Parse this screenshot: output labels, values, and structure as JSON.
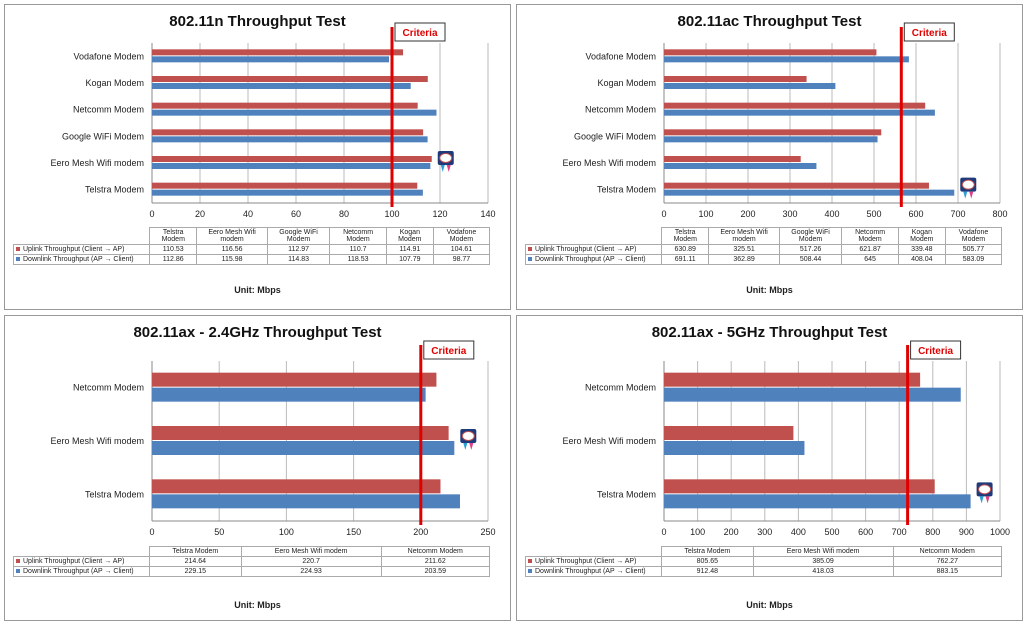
{
  "unit_label": "Unit: Mbps",
  "criteria_label": "Criteria",
  "colors": {
    "uplink": "#c0504d",
    "downlink": "#4f81bd",
    "criteria": "#e00000"
  },
  "chart_data": [
    {
      "type": "bar",
      "orientation": "horizontal",
      "title": "802.11n Throughput Test",
      "categories": [
        "Telstra Modem",
        "Eero Mesh Wifi modem",
        "Google WiFi Modem",
        "Netcomm Modem",
        "Kogan Modem",
        "Vodafone Modem"
      ],
      "table_headers": [
        "Telstra Modem",
        "Eero Mesh Wifi modem",
        "Google WiFi Modem",
        "Netcomm Modem",
        "Kogan Modem",
        "Vodafone Modem"
      ],
      "series": [
        {
          "name": "Uplink Throughput (Client → AP)",
          "values": [
            110.53,
            116.56,
            112.97,
            110.7,
            114.91,
            104.61
          ]
        },
        {
          "name": "Downlink Throughput (AP → Client)",
          "values": [
            112.86,
            115.98,
            114.83,
            118.53,
            107.79,
            98.77
          ]
        }
      ],
      "xlim": [
        0,
        140
      ],
      "ticks": [
        0,
        20,
        40,
        60,
        80,
        100,
        120,
        140
      ],
      "criteria": 100,
      "badge_category": "Eero Mesh Wifi modem",
      "grid": true
    },
    {
      "type": "bar",
      "orientation": "horizontal",
      "title": "802.11ac Throughput Test",
      "categories": [
        "Telstra Modem",
        "Eero Mesh Wifi modem",
        "Google WiFi Modem",
        "Netcomm Modem",
        "Kogan Modem",
        "Vodafone Modem"
      ],
      "table_headers": [
        "Telstra Modem",
        "Eero Mesh Wifi modem",
        "Google WiFi Modem",
        "Netcomm Modem",
        "Kogan Modem",
        "Vodafone Modem"
      ],
      "series": [
        {
          "name": "Uplink Throughput (Client → AP)",
          "values": [
            630.89,
            325.51,
            517.26,
            621.87,
            339.48,
            505.77
          ]
        },
        {
          "name": "Downlink Throughput (AP → Client)",
          "values": [
            691.11,
            362.89,
            508.44,
            645,
            408.04,
            583.09
          ]
        }
      ],
      "xlim": [
        0,
        800
      ],
      "ticks": [
        0,
        100,
        200,
        300,
        400,
        500,
        600,
        700,
        800
      ],
      "criteria": 565,
      "badge_category": "Telstra Modem",
      "grid": true
    },
    {
      "type": "bar",
      "orientation": "horizontal",
      "title": "802.11ax - 2.4GHz Throughput Test",
      "categories": [
        "Telstra Modem",
        "Eero Mesh Wifi modem",
        "Netcomm Modem"
      ],
      "table_headers": [
        "Telstra Modem",
        "Eero Mesh Wifi modem",
        "Netcomm Modem"
      ],
      "series": [
        {
          "name": "Uplink Throughput (Client → AP)",
          "values": [
            214.64,
            220.7,
            211.62
          ]
        },
        {
          "name": "Downlink Throughput (AP → Client)",
          "values": [
            229.15,
            224.93,
            203.59
          ]
        }
      ],
      "xlim": [
        0,
        250
      ],
      "ticks": [
        0,
        50,
        100,
        150,
        200,
        250
      ],
      "criteria": 200,
      "badge_category": "Eero Mesh Wifi modem",
      "grid": true
    },
    {
      "type": "bar",
      "orientation": "horizontal",
      "title": "802.11ax - 5GHz Throughput Test",
      "categories": [
        "Telstra Modem",
        "Eero Mesh Wifi modem",
        "Netcomm Modem"
      ],
      "table_headers": [
        "Telstra Modem",
        "Eero Mesh Wifi modem",
        "Netcomm Modem"
      ],
      "series": [
        {
          "name": "Uplink Throughput (Client → AP)",
          "values": [
            805.65,
            385.09,
            762.27
          ]
        },
        {
          "name": "Downlink Throughput (AP → Client)",
          "values": [
            912.48,
            418.03,
            883.15
          ]
        }
      ],
      "xlim": [
        0,
        1000
      ],
      "ticks": [
        0,
        100,
        200,
        300,
        400,
        500,
        600,
        700,
        800,
        900,
        1000
      ],
      "criteria": 725,
      "badge_category": "Telstra Modem",
      "grid": true
    }
  ]
}
